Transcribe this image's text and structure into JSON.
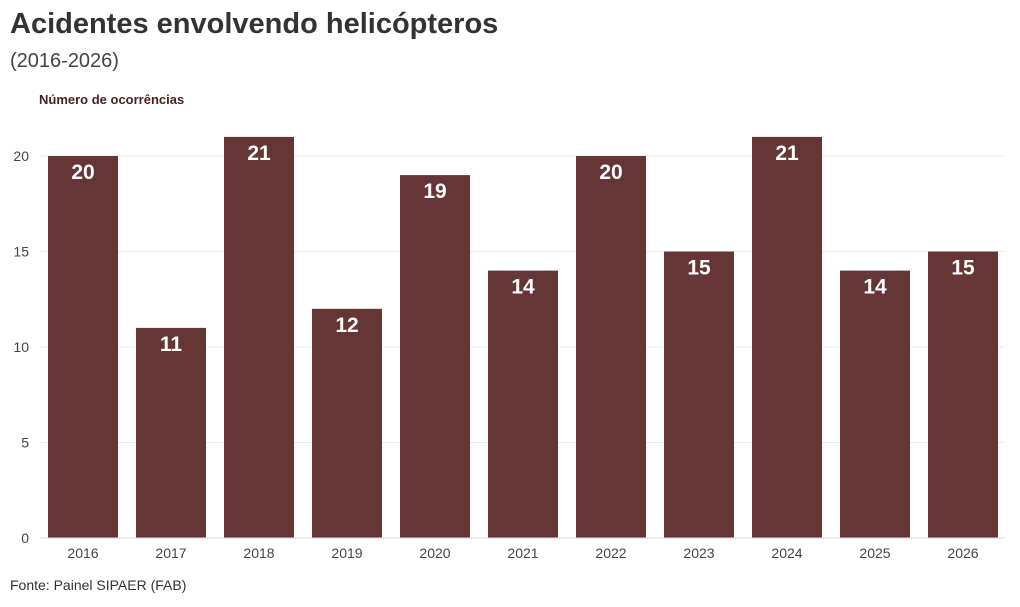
{
  "chart_data": {
    "type": "bar",
    "title": "Acidentes envolvendo helicópteros",
    "subtitle": "(2016-2026)",
    "ylabel": "Número de ocorrências",
    "xlabel": "",
    "categories": [
      "2016",
      "2017",
      "2018",
      "2019",
      "2020",
      "2021",
      "2022",
      "2023",
      "2024",
      "2025",
      "2026"
    ],
    "values": [
      20,
      11,
      21,
      12,
      19,
      14,
      20,
      15,
      21,
      14,
      15
    ],
    "ylim": [
      0,
      22
    ],
    "yticks": [
      0,
      5,
      10,
      15,
      20
    ],
    "grid": true,
    "legend": "none",
    "colors": {
      "bar": "#663536",
      "data_label": "#ffffff"
    }
  },
  "source": "Fonte: Painel SIPAER (FAB)"
}
